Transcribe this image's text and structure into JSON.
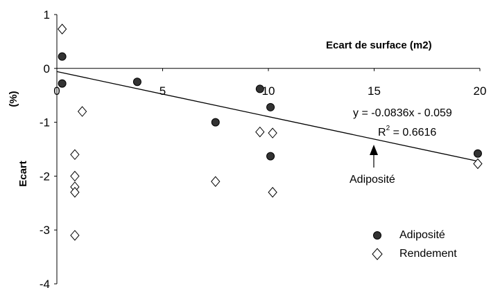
{
  "chart_data": {
    "type": "scatter",
    "xlabel": "Ecart de surface (m2)",
    "ylabel_unit": "(%)",
    "ylabel_word": "Ecart",
    "xlim": [
      0,
      20
    ],
    "ylim": [
      -4,
      1
    ],
    "x_ticks": [
      "0",
      "5",
      "10",
      "15",
      "20"
    ],
    "y_ticks": [
      "1",
      "0",
      "-1",
      "-2",
      "-3",
      "-4"
    ],
    "x_tick_values": [
      0,
      5,
      10,
      15,
      20
    ],
    "y_tick_values": [
      1,
      0,
      -1,
      -2,
      -3,
      -4
    ],
    "series": [
      {
        "name": "Adiposité",
        "marker": "filled-circle",
        "color": "#333333",
        "points": [
          {
            "x": 0.25,
            "y": 0.22
          },
          {
            "x": 0.25,
            "y": -0.28
          },
          {
            "x": 3.8,
            "y": -0.25
          },
          {
            "x": 7.5,
            "y": -1.0
          },
          {
            "x": 9.6,
            "y": -0.38
          },
          {
            "x": 10.1,
            "y": -0.72
          },
          {
            "x": 10.1,
            "y": -1.63
          },
          {
            "x": 19.9,
            "y": -1.58
          }
        ]
      },
      {
        "name": "Rendement",
        "marker": "open-diamond",
        "color": "#000000",
        "points": [
          {
            "x": 0.25,
            "y": 0.73
          },
          {
            "x": 1.2,
            "y": -0.8
          },
          {
            "x": 0.85,
            "y": -1.6
          },
          {
            "x": 0.85,
            "y": -2.0
          },
          {
            "x": 0.85,
            "y": -2.2
          },
          {
            "x": 0.85,
            "y": -2.3
          },
          {
            "x": 0.85,
            "y": -3.1
          },
          {
            "x": 7.5,
            "y": -2.1
          },
          {
            "x": 9.6,
            "y": -1.18
          },
          {
            "x": 10.2,
            "y": -1.2
          },
          {
            "x": 10.2,
            "y": -2.3
          },
          {
            "x": 19.9,
            "y": -1.77
          }
        ]
      }
    ],
    "trendline": {
      "series": "Adiposité",
      "slope": -0.0836,
      "intercept": -0.059,
      "x_range": [
        0,
        20
      ]
    },
    "equation_text": "y = -0.0836x - 0.059",
    "r2_prefix": "R",
    "r2_exp": "2",
    "r2_value": " = 0.6616",
    "annotation": {
      "text": "Adiposité",
      "points_to_x": 15
    },
    "legend": {
      "position": "bottom-right",
      "items": [
        {
          "label": "Adiposité",
          "marker": "filled-circle"
        },
        {
          "label": "Rendement",
          "marker": "open-diamond"
        }
      ]
    },
    "grid": false
  }
}
